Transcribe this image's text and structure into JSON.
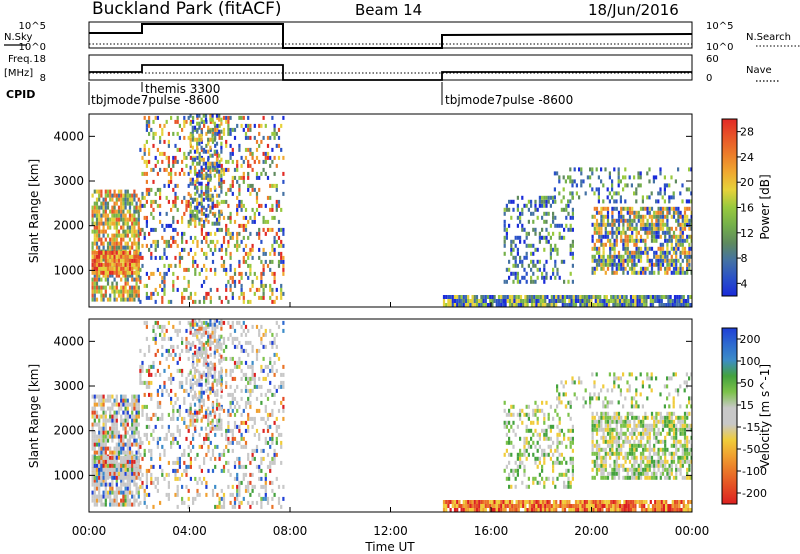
{
  "header": {
    "station": "Buckland Park (fitACF)",
    "beam": "Beam 14",
    "date": "18/Jun/2016"
  },
  "noise_panel": {
    "left_label": "N.Sky",
    "right_label": "N.Search",
    "ticks": [
      "10^5",
      "10^0"
    ],
    "right_ticks": [
      "10^5",
      "10^0"
    ]
  },
  "freq_panel": {
    "left_label_line1": "Freq.",
    "left_label_line2": "[MHz]",
    "left_ticks": [
      "18",
      "8"
    ],
    "right_label": "Nave",
    "right_ticks": [
      "60",
      "0"
    ]
  },
  "cpid": {
    "label": "CPID",
    "segments": [
      {
        "name": "tbjmode7pulse -8600",
        "start": 0.0,
        "end": 2.0
      },
      {
        "name": "themis 3300",
        "start": 2.0,
        "end": 7.75
      },
      {
        "name": "tbjmode7pulse -8600",
        "start": 14.0,
        "end": 24.0
      }
    ]
  },
  "chart_data": [
    {
      "type": "heatmap",
      "name": "power",
      "ylabel": "Slant Range [km]",
      "ylim": [
        180,
        4500
      ],
      "yticks": [
        "4000",
        "3000",
        "2000",
        "1000"
      ],
      "colorbar": {
        "label": "Power [dB]",
        "ticks": [
          "28",
          "24",
          "20",
          "16",
          "12",
          "8",
          "4"
        ],
        "colors": [
          "#1a2bd9",
          "#2a51c8",
          "#4472a4",
          "#5f8a5e",
          "#74b04a",
          "#98c93e",
          "#e6d23a",
          "#f0a830",
          "#ec7d2a",
          "#e85428",
          "#e22a25"
        ]
      },
      "data_gaps_hours": [
        [
          7.75,
          14.0
        ]
      ]
    },
    {
      "type": "heatmap",
      "name": "velocity",
      "ylabel": "Slant Range [km]",
      "ylim": [
        180,
        4500
      ],
      "yticks": [
        "4000",
        "3000",
        "2000",
        "1000"
      ],
      "colorbar": {
        "label": "Velocity [m s^-1]",
        "ticks": [
          "200",
          "100",
          "50",
          "15",
          "-15",
          "-50",
          "-100",
          "-200"
        ],
        "colors": [
          "#1f3fd6",
          "#2d6ad0",
          "#3c8cc8",
          "#44a23e",
          "#7cc24a",
          "#c8c8c8",
          "#c8c8c8",
          "#f0cc3a",
          "#f0a030",
          "#ea7428",
          "#e44a24",
          "#dc2020"
        ]
      },
      "data_gaps_hours": [
        [
          7.75,
          14.0
        ]
      ]
    }
  ],
  "x_axis": {
    "label": "Time UT",
    "ticks": [
      "00:00",
      "04:00",
      "08:00",
      "12:00",
      "16:00",
      "20:00",
      "00:00"
    ]
  }
}
